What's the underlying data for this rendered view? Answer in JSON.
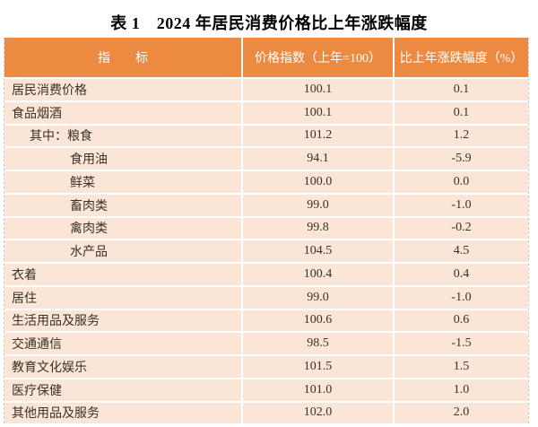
{
  "title": "表 1　2024 年居民消费价格比上年涨跌幅度",
  "table": {
    "headers": [
      "指　　标",
      "价格指数（上年=100）",
      "比上年涨跌幅度（%）"
    ],
    "rows": [
      {
        "indicator": "居民消费价格",
        "price_index": "100.1",
        "change_pct": "0.1",
        "indent": 0
      },
      {
        "indicator": "食品烟酒",
        "price_index": "100.1",
        "change_pct": "0.1",
        "indent": 0
      },
      {
        "indicator": "其中：粮食",
        "price_index": "101.2",
        "change_pct": "1.2",
        "indent": 1
      },
      {
        "indicator": "食用油",
        "price_index": "94.1",
        "change_pct": "-5.9",
        "indent": 2
      },
      {
        "indicator": "鲜菜",
        "price_index": "100.0",
        "change_pct": "0.0",
        "indent": 2
      },
      {
        "indicator": "畜肉类",
        "price_index": "99.0",
        "change_pct": "-1.0",
        "indent": 2
      },
      {
        "indicator": "禽肉类",
        "price_index": "99.8",
        "change_pct": "-0.2",
        "indent": 2
      },
      {
        "indicator": "水产品",
        "price_index": "104.5",
        "change_pct": "4.5",
        "indent": 2
      },
      {
        "indicator": "衣着",
        "price_index": "100.4",
        "change_pct": "0.4",
        "indent": 0
      },
      {
        "indicator": "居住",
        "price_index": "99.0",
        "change_pct": "-1.0",
        "indent": 0
      },
      {
        "indicator": "生活用品及服务",
        "price_index": "100.6",
        "change_pct": "0.6",
        "indent": 0
      },
      {
        "indicator": "交通通信",
        "price_index": "98.5",
        "change_pct": "-1.5",
        "indent": 0
      },
      {
        "indicator": "教育文化娱乐",
        "price_index": "101.5",
        "change_pct": "1.5",
        "indent": 0
      },
      {
        "indicator": "医疗保健",
        "price_index": "101.0",
        "change_pct": "1.0",
        "indent": 0
      },
      {
        "indicator": "其他用品及服务",
        "price_index": "102.0",
        "change_pct": "2.0",
        "indent": 0
      }
    ]
  },
  "colors": {
    "header_bg": "#ED8A42",
    "row_bg": "#FBE5D6",
    "edge_dash": "#C9C9C9",
    "header_text": "#FFFFFF",
    "body_text": "#3A3128",
    "title_text": "#000000"
  }
}
